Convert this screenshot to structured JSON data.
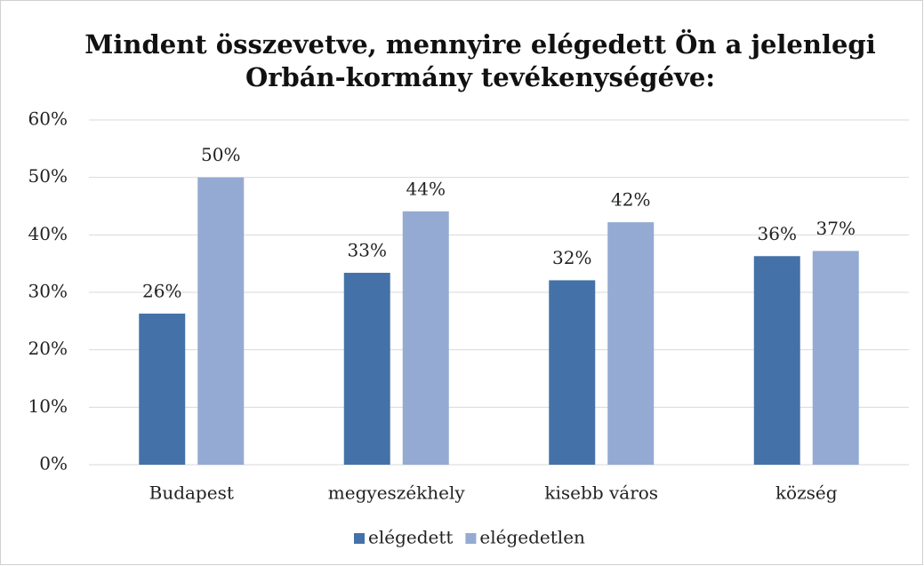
{
  "chart_data": {
    "type": "bar",
    "title": [
      "Mindent összevetve, mennyire elégedett Ön a jelenlegi",
      "Orbán-kormány tevékenységéve:"
    ],
    "categories": [
      "Budapest",
      "megyeszékhely",
      "kisebb város",
      "község"
    ],
    "series": [
      {
        "name": "elégedett",
        "color": "#4472a8",
        "values": [
          26.3,
          33.4,
          32.1,
          36.3
        ],
        "value_labels": [
          "26%",
          "33%",
          "32%",
          "36%"
        ]
      },
      {
        "name": "elégedetlen",
        "color": "#95aad2",
        "values": [
          50,
          44.1,
          42.2,
          37.2
        ],
        "value_labels": [
          "50%",
          "44%",
          "42%",
          "37%"
        ]
      }
    ],
    "ylim": [
      0,
      60
    ],
    "yticks": [
      {
        "value": 0,
        "label": "0%"
      },
      {
        "value": 10,
        "label": "10%"
      },
      {
        "value": 20,
        "label": "20%"
      },
      {
        "value": 30,
        "label": "30%"
      },
      {
        "value": 40,
        "label": "40%"
      },
      {
        "value": 50,
        "label": "50%"
      },
      {
        "value": 60,
        "label": "60%"
      }
    ],
    "grid": true,
    "legend": "bottom"
  }
}
